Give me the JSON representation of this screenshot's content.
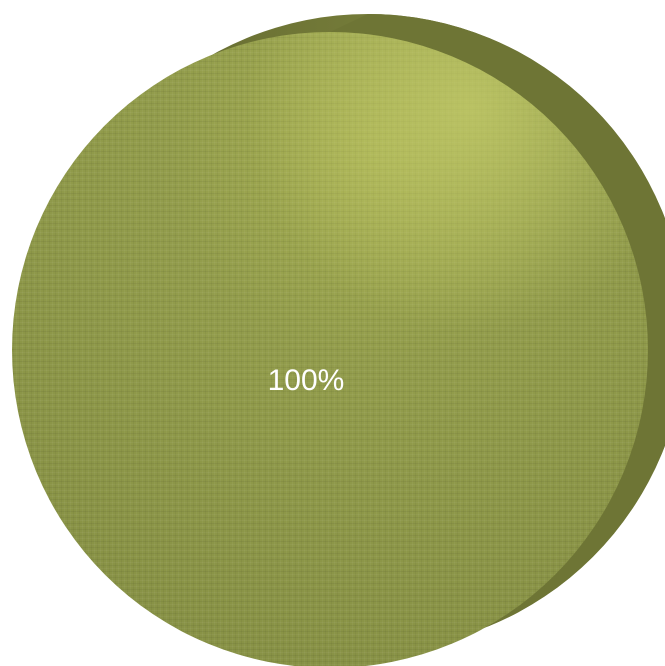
{
  "chart_data": {
    "type": "pie",
    "title": "",
    "slices": [
      {
        "label": "100%",
        "value": 100,
        "color": "#8f994a"
      }
    ],
    "style": "3d-tilted-disc-with-linen-texture"
  },
  "colors": {
    "face": "#8f994a",
    "edge": "#6e7535",
    "highlight": "#b4bc5c"
  }
}
